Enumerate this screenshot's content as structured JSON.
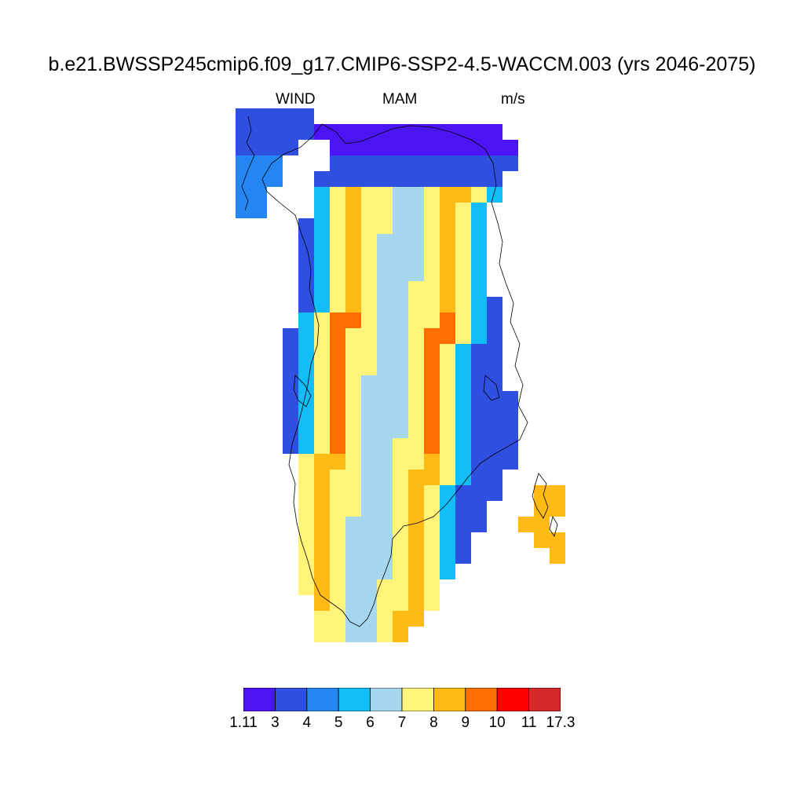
{
  "title": "b.e21.BWSSP245cmip6.f09_g17.CMIP6-SSP2-4.5-WACCM.003 (yrs 2046-2075)",
  "subtitle": {
    "left": "WIND",
    "center": "MAM",
    "right": "m/s"
  },
  "colorbar": {
    "colors": [
      "#4a14f5",
      "#2f4fe0",
      "#2486f2",
      "#13bdf7",
      "#a6d7f0",
      "#fff47a",
      "#ffbb14",
      "#ff6e00",
      "#ff0000",
      "#d42a2a"
    ],
    "labels": [
      "1.11",
      "3",
      "4",
      "5",
      "6",
      "7",
      "8",
      "9",
      "10",
      "11",
      "17.3"
    ]
  },
  "map": {
    "region": "Greenland",
    "coastline_color": "#000000"
  }
}
